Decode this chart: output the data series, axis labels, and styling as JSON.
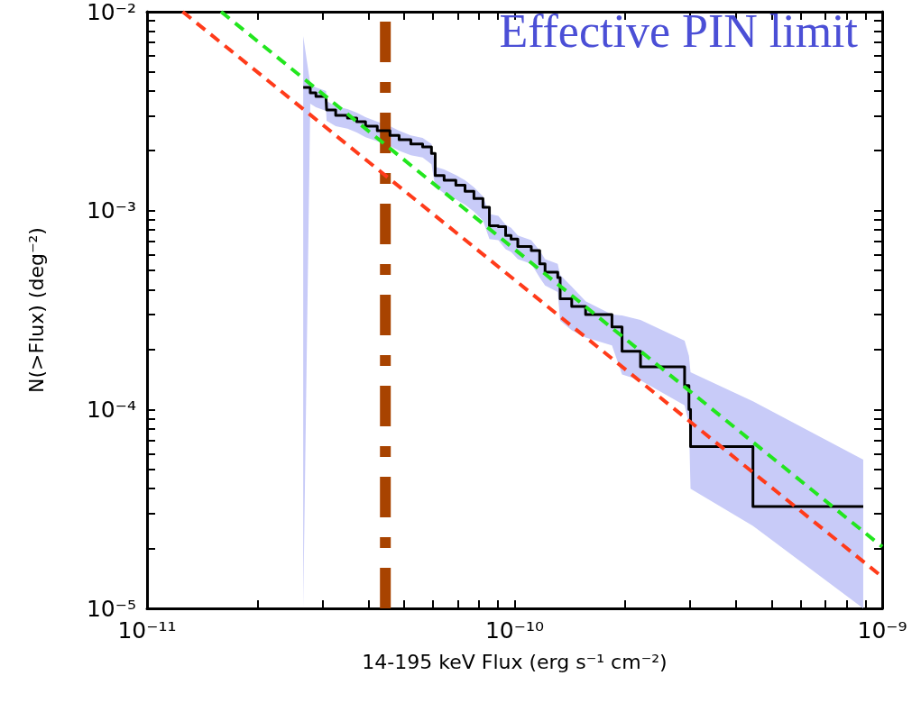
{
  "chart_data": {
    "type": "step",
    "xlabel": "14-195 keV Flux (erg s⁻¹ cm⁻²)",
    "ylabel": "N(>Flux) (deg⁻²)",
    "log": "xy",
    "xlim": [
      1e-11,
      1e-09
    ],
    "ylim": [
      1e-05,
      0.01
    ],
    "xticks": [
      {
        "value": 1e-11,
        "label": "10⁻¹¹"
      },
      {
        "value": 2e-11,
        "label": null
      },
      {
        "value": 3e-11,
        "label": null
      },
      {
        "value": 4e-11,
        "label": null
      },
      {
        "value": 5e-11,
        "label": null
      },
      {
        "value": 6e-11,
        "label": null
      },
      {
        "value": 7e-11,
        "label": null
      },
      {
        "value": 8e-11,
        "label": null
      },
      {
        "value": 9e-11,
        "label": null
      },
      {
        "value": 1e-10,
        "label": "10⁻¹⁰"
      },
      {
        "value": 2e-10,
        "label": null
      },
      {
        "value": 3e-10,
        "label": null
      },
      {
        "value": 4e-10,
        "label": null
      },
      {
        "value": 5e-10,
        "label": null
      },
      {
        "value": 6e-10,
        "label": null
      },
      {
        "value": 7e-10,
        "label": null
      },
      {
        "value": 8e-10,
        "label": null
      },
      {
        "value": 9e-10,
        "label": null
      },
      {
        "value": 1e-09,
        "label": "10⁻⁹"
      }
    ],
    "yticks": [
      {
        "value": 1e-05,
        "label": "10⁻⁵"
      },
      {
        "value": 2e-05,
        "label": null
      },
      {
        "value": 3e-05,
        "label": null
      },
      {
        "value": 4e-05,
        "label": null
      },
      {
        "value": 5e-05,
        "label": null
      },
      {
        "value": 6e-05,
        "label": null
      },
      {
        "value": 7e-05,
        "label": null
      },
      {
        "value": 8e-05,
        "label": null
      },
      {
        "value": 9e-05,
        "label": null
      },
      {
        "value": 0.0001,
        "label": "10⁻⁴"
      },
      {
        "value": 0.0002,
        "label": null
      },
      {
        "value": 0.0003,
        "label": null
      },
      {
        "value": 0.0004,
        "label": null
      },
      {
        "value": 0.0005,
        "label": null
      },
      {
        "value": 0.0006,
        "label": null
      },
      {
        "value": 0.0007,
        "label": null
      },
      {
        "value": 0.0008,
        "label": null
      },
      {
        "value": 0.0009,
        "label": null
      },
      {
        "value": 0.001,
        "label": "10⁻³"
      },
      {
        "value": 0.002,
        "label": null
      },
      {
        "value": 0.003,
        "label": null
      },
      {
        "value": 0.004,
        "label": null
      },
      {
        "value": 0.005,
        "label": null
      },
      {
        "value": 0.006,
        "label": null
      },
      {
        "value": 0.007,
        "label": null
      },
      {
        "value": 0.008,
        "label": null
      },
      {
        "value": 0.009,
        "label": null
      },
      {
        "value": 0.01,
        "label": "10⁻²"
      }
    ],
    "grid": false,
    "marker": "none",
    "series": [
      {
        "color": "#000000",
        "line_style": "solid",
        "x": [
          2.66e-11,
          2.78e-11,
          2.88e-11,
          3.07e-11,
          3.08e-11,
          3.26e-11,
          3.51e-11,
          3.72e-11,
          3.93e-11,
          4.23e-11,
          4.58e-11,
          4.85e-11,
          5.22e-11,
          5.62e-11,
          5.94e-11,
          6.08e-11,
          6.43e-11,
          6.92e-11,
          7.33e-11,
          7.75e-11,
          8.2e-11,
          8.54e-11,
          9.03e-11,
          9.45e-11,
          9.78e-11,
          1.02e-10,
          1.11e-10,
          1.17e-10,
          1.21e-10,
          1.31e-10,
          1.33e-10,
          1.43e-10,
          1.56e-10,
          1.84e-10,
          1.96e-10,
          2.2e-10,
          2.9e-10,
          2.98e-10,
          3.01e-10,
          4.45e-10,
          8.88e-10
        ],
        "values": [
          0.00416,
          0.00391,
          0.00375,
          0.0036,
          0.00321,
          0.00301,
          0.00292,
          0.0028,
          0.00266,
          0.00252,
          0.00239,
          0.00227,
          0.00216,
          0.00209,
          0.00194,
          0.0015,
          0.00142,
          0.00134,
          0.00125,
          0.00115,
          0.00104,
          0.00084,
          0.00083,
          0.00075,
          0.00072,
          0.00066,
          0.00063,
          0.00054,
          0.00049,
          0.00046,
          0.00036,
          0.00033,
          0.0003,
          0.00026,
          0.000196,
          0.000164,
          0.000132,
          0.0001,
          6.5e-05,
          3.25e-05,
          3.25e-05
        ],
        "upper": [
          0.00755,
          0.00434,
          0.00416,
          0.00399,
          0.00356,
          0.00334,
          0.00324,
          0.00311,
          0.00295,
          0.0028,
          0.00266,
          0.00252,
          0.00239,
          0.00232,
          0.00216,
          0.00166,
          0.00161,
          0.00151,
          0.00142,
          0.00131,
          0.00118,
          0.00096,
          0.00094,
          0.00085,
          0.00082,
          0.00075,
          0.00071,
          0.00063,
          0.00057,
          0.00054,
          0.000475,
          0.000415,
          0.00035,
          0.0003,
          0.000297,
          0.000282,
          0.000222,
          0.000186,
          0.000154,
          0.00011,
          5.6e-05
        ],
        "lower": [
          1e-05,
          0.00345,
          0.00331,
          0.00317,
          0.00283,
          0.00266,
          0.00258,
          0.00247,
          0.00234,
          0.00223,
          0.00211,
          0.002,
          0.0019,
          0.00185,
          0.00171,
          0.00132,
          0.00122,
          0.00114,
          0.00107,
          0.00099,
          0.00089,
          0.00072,
          0.00071,
          0.00064,
          0.00062,
          0.00057,
          0.00054,
          0.00046,
          0.00042,
          0.00039,
          0.00028,
          0.00025,
          0.00023,
          0.00021,
          0.00015,
          0.00014,
          0.000105,
          8.5e-05,
          4e-05,
          2.6e-05,
          1e-05
        ]
      },
      {
        "type": "line",
        "color": "#22e61e",
        "line_style": "dashed",
        "x": [
          1.59e-11,
          1e-09
        ],
        "values": [
          0.01,
          2.04e-05
        ]
      },
      {
        "type": "line",
        "color": "#ff3b1a",
        "line_style": "dashed",
        "x": [
          1.25e-11,
          1e-09
        ],
        "values": [
          0.01,
          1.44e-05
        ]
      }
    ],
    "ref_lines": [
      {
        "axis": "x",
        "value": 4.45e-11,
        "color": "#a84300",
        "line_style": "dashed"
      }
    ],
    "annotations": [
      "Effective PIN limit"
    ]
  }
}
